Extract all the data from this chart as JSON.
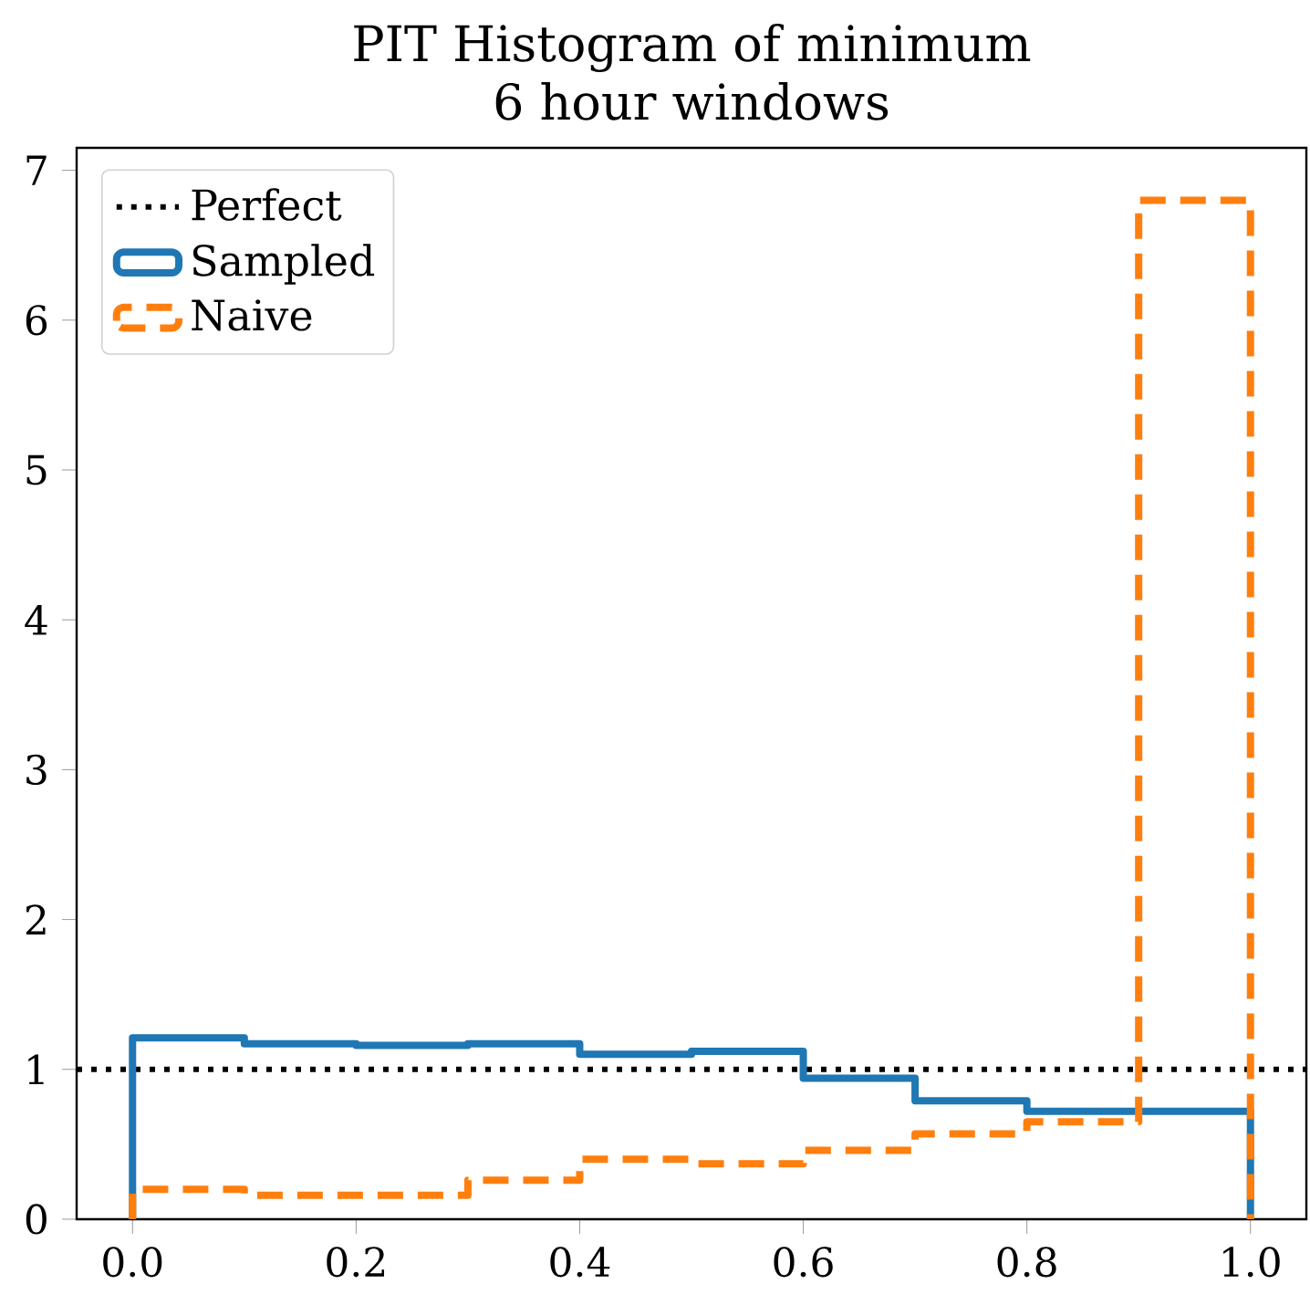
{
  "chart_data": {
    "type": "histogram",
    "title": "PIT Histogram of minimum\n6 hour windows",
    "bins": [
      0.0,
      0.1,
      0.2,
      0.3,
      0.4,
      0.5,
      0.6,
      0.7,
      0.8,
      0.9,
      1.0
    ],
    "series": [
      {
        "name": "Sampled",
        "color": "#1f77b4",
        "line_style": "solid",
        "values": [
          1.21,
          1.17,
          1.16,
          1.17,
          1.1,
          1.12,
          0.94,
          0.79,
          0.72,
          0.72
        ]
      },
      {
        "name": "Naive",
        "color": "#ff7f0e",
        "line_style": "dashed",
        "values": [
          0.2,
          0.16,
          0.16,
          0.26,
          0.4,
          0.37,
          0.46,
          0.57,
          0.65,
          6.8
        ]
      }
    ],
    "ref_lines": [
      {
        "axis": "y",
        "value": 1,
        "label": "Perfect",
        "color": "#000000",
        "line_style": "dotted"
      }
    ],
    "xlim": [
      -0.05,
      1.05
    ],
    "ylim": [
      0,
      7.15
    ],
    "xticks": [
      {
        "value": 0.0,
        "label": "0.0"
      },
      {
        "value": 0.2,
        "label": "0.2"
      },
      {
        "value": 0.4,
        "label": "0.4"
      },
      {
        "value": 0.6,
        "label": "0.6"
      },
      {
        "value": 0.8,
        "label": "0.8"
      },
      {
        "value": 1.0,
        "label": "1.0"
      }
    ],
    "yticks": [
      0,
      1,
      2,
      3,
      4,
      5,
      6,
      7
    ],
    "legend": "top left",
    "grid": false
  }
}
